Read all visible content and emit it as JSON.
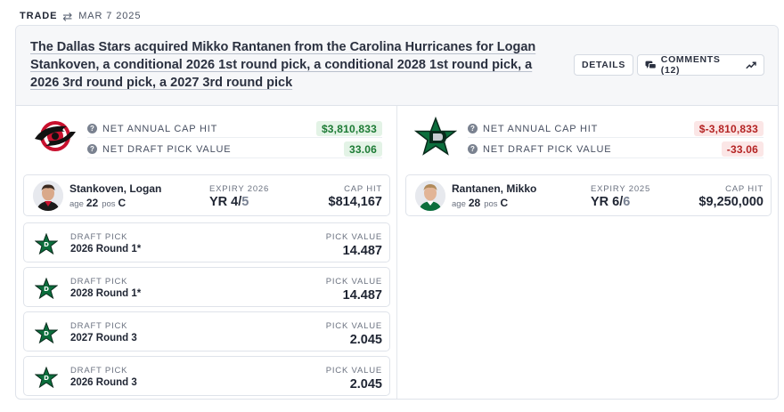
{
  "header": {
    "type_label": "TRADE",
    "date": "MAR 7 2025"
  },
  "headline": {
    "text": "The Dallas Stars acquired Mikko Rantanen from the Carolina Hurricanes for Logan Stankoven, a conditional 2026 1st round pick, a conditional 2028 1st round pick, a 2026 3rd round pick, a 2027 3rd round pick",
    "details_label": "DETAILS",
    "comments_label": "COMMENTS (12)"
  },
  "left_team": {
    "logo_icon": "carolina-hurricanes-logo",
    "cap_hit_label": "NET ANNUAL CAP HIT",
    "cap_hit_value": "$3,810,833",
    "pick_value_label": "NET DRAFT PICK VALUE",
    "pick_value_value": "33.06",
    "status_color": "#1c7a34",
    "player": {
      "name": "Stankoven, Logan",
      "age_label": "age",
      "age": "22",
      "pos_label": "pos",
      "pos": "C",
      "expiry_label": "EXPIRY 2026",
      "yr_prefix": "YR 4/",
      "yr_total": "5",
      "cap_label": "CAP HIT",
      "cap_value": "$814,167"
    },
    "picks": [
      {
        "label": "DRAFT PICK",
        "name": "2026 Round 1*",
        "value_label": "PICK VALUE",
        "value": "14.487"
      },
      {
        "label": "DRAFT PICK",
        "name": "2028 Round 1*",
        "value_label": "PICK VALUE",
        "value": "14.487"
      },
      {
        "label": "DRAFT PICK",
        "name": "2027 Round 3",
        "value_label": "PICK VALUE",
        "value": "2.045"
      },
      {
        "label": "DRAFT PICK",
        "name": "2026 Round 3",
        "value_label": "PICK VALUE",
        "value": "2.045"
      }
    ]
  },
  "right_team": {
    "logo_icon": "dallas-stars-logo",
    "cap_hit_label": "NET ANNUAL CAP HIT",
    "cap_hit_value": "$-3,810,833",
    "pick_value_label": "NET DRAFT PICK VALUE",
    "pick_value_value": "-33.06",
    "status_color": "#b42323",
    "player": {
      "name": "Rantanen, Mikko",
      "age_label": "age",
      "age": "28",
      "pos_label": "pos",
      "pos": "C",
      "expiry_label": "EXPIRY 2025",
      "yr_prefix": "YR 6/",
      "yr_total": "6",
      "cap_label": "CAP HIT",
      "cap_value": "$9,250,000"
    }
  }
}
